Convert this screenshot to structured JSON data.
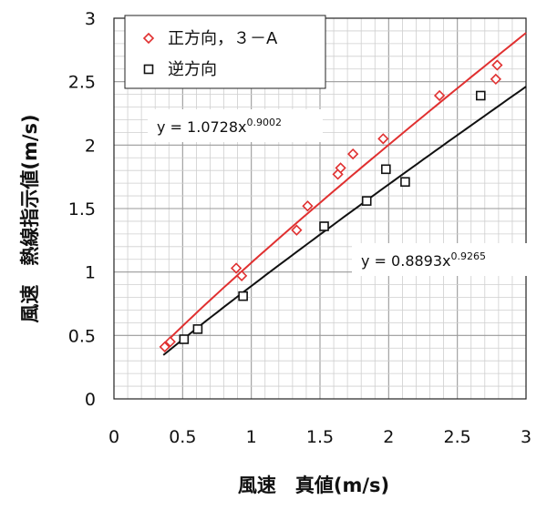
{
  "chart_data": {
    "type": "scatter",
    "xlabel": "風速　真値(m/s)",
    "ylabel": "風速　熱線指示値(m/s)",
    "xlim": [
      0,
      3
    ],
    "ylim": [
      0,
      3
    ],
    "x_ticks": [
      "0",
      "0.5",
      "1",
      "1.5",
      "2",
      "2.5",
      "3"
    ],
    "y_ticks": [
      "0",
      "0.5",
      "1",
      "1.5",
      "2",
      "2.5",
      "3"
    ],
    "grid": true,
    "legend_position": "top-left",
    "series": [
      {
        "name": "正方向，３－A",
        "marker": "diamond",
        "color": "#e03030",
        "points": [
          [
            0.37,
            0.41
          ],
          [
            0.41,
            0.45
          ],
          [
            0.89,
            1.03
          ],
          [
            0.93,
            0.97
          ],
          [
            1.33,
            1.33
          ],
          [
            1.41,
            1.52
          ],
          [
            1.63,
            1.77
          ],
          [
            1.65,
            1.82
          ],
          [
            1.74,
            1.93
          ],
          [
            1.96,
            2.05
          ],
          [
            2.37,
            2.39
          ],
          [
            2.78,
            2.52
          ],
          [
            2.79,
            2.63
          ]
        ],
        "fit": {
          "coef": 1.0728,
          "exp": 0.9002,
          "x_range": [
            0.36,
            3.0
          ]
        },
        "equation": {
          "base": "y = 1.0728x",
          "sup": "0.9002"
        }
      },
      {
        "name": "逆方向",
        "marker": "square",
        "color": "#111111",
        "points": [
          [
            0.51,
            0.47
          ],
          [
            0.61,
            0.55
          ],
          [
            0.94,
            0.81
          ],
          [
            1.53,
            1.36
          ],
          [
            1.84,
            1.56
          ],
          [
            1.98,
            1.81
          ],
          [
            2.12,
            1.71
          ],
          [
            2.67,
            2.39
          ]
        ],
        "fit": {
          "coef": 0.8893,
          "exp": 0.9265,
          "x_range": [
            0.36,
            3.0
          ]
        },
        "equation": {
          "base": "y = 0.8893x",
          "sup": "0.9265"
        }
      }
    ]
  }
}
